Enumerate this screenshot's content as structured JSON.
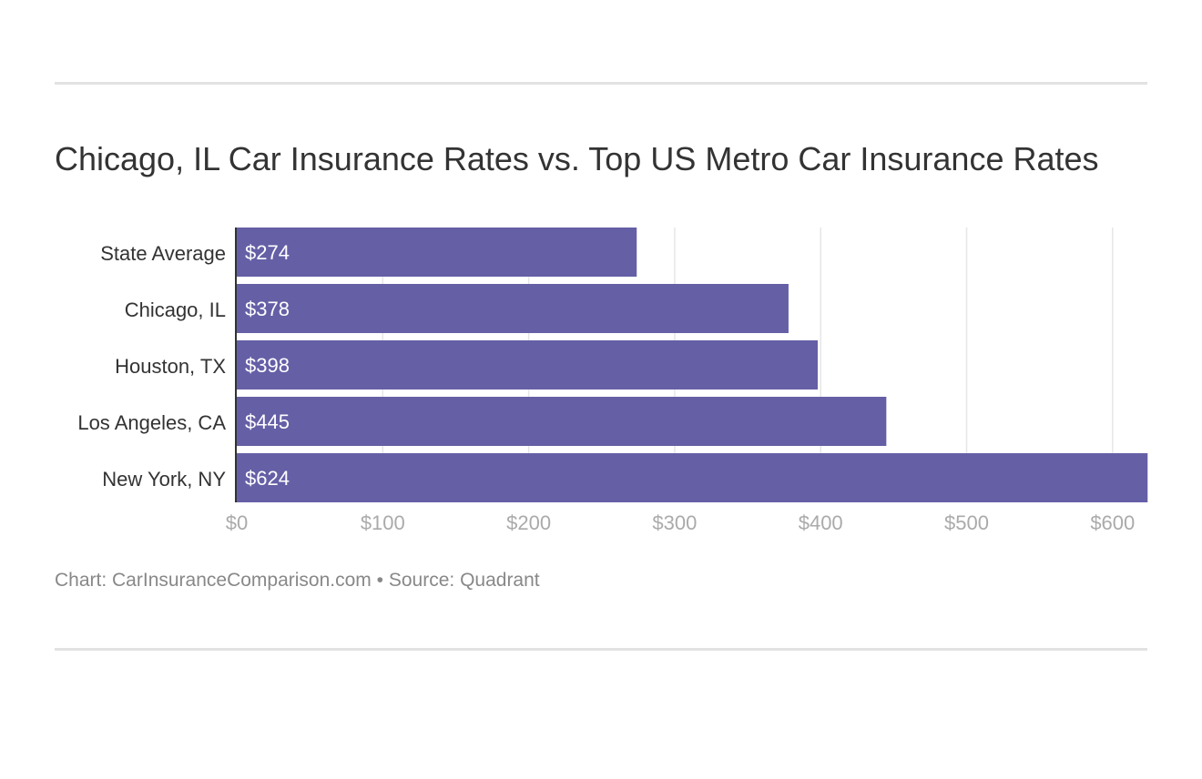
{
  "title": "Chicago, IL Car Insurance Rates vs. Top US Metro Car Insurance Rates",
  "footer": {
    "chart_credit": "Chart: CarInsuranceComparison.com",
    "separator": "•",
    "source": "Source: Quadrant"
  },
  "colors": {
    "bar": "#655fa6",
    "bar_label": "#ffffff",
    "grid": "#e6e6e6",
    "axis": "#333333",
    "tick": "#aaaaaa"
  },
  "chart_data": {
    "type": "bar",
    "orientation": "horizontal",
    "title": "Chicago, IL Car Insurance Rates vs. Top US Metro Car Insurance Rates",
    "categories": [
      "State Average",
      "Chicago, IL",
      "Houston, TX",
      "Los Angeles, CA",
      "New York, NY"
    ],
    "values": [
      274,
      378,
      398,
      445,
      624
    ],
    "data_labels": [
      "$274",
      "$378",
      "$398",
      "$445",
      "$624"
    ],
    "xlim": [
      0,
      624
    ],
    "xticks": [
      0,
      100,
      200,
      300,
      400,
      500,
      600
    ],
    "xtick_labels": [
      "$0",
      "$100",
      "$200",
      "$300",
      "$400",
      "$500",
      "$600"
    ],
    "xlabel": "",
    "ylabel": "",
    "grid": "vertical"
  }
}
